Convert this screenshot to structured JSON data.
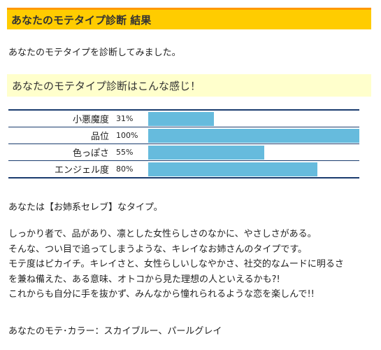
{
  "header": {
    "title": "あなたのモテタイプ診断 結果"
  },
  "intro_text": "あなたのモテタイプを診断してみました。",
  "section": {
    "heading": "あなたのモテタイプ診断はこんな感じ！"
  },
  "meters": [
    {
      "label": "小悪魔度",
      "percent_text": "31%",
      "value": 31
    },
    {
      "label": "品位",
      "percent_text": "100%",
      "value": 100
    },
    {
      "label": "色っぽさ",
      "percent_text": "55%",
      "value": 55
    },
    {
      "label": "エンジェル度",
      "percent_text": "80%",
      "value": 80
    }
  ],
  "meter_color": "#66bbdd",
  "result": {
    "type_line": "あなたは【お姉系セレブ】なタイプ。",
    "description_lines": [
      "しっかり者で、品があり、凛とした女性らしさのなかに、やさしさがある。",
      "そんな、つい目で追ってしまうような、キレイなお姉さんのタイプです。",
      "モテ度はピカイチ。キレイさと、女性らしいしなやかさ、社交的なムードに明るさ",
      "を兼ね備えた、ある意味、オトコから見た理想の人といえるかも?!",
      "これからも自分に手を抜かず、みんなから憧れられるような恋を楽しんで!!"
    ],
    "colors_line": "あなたのモテ･カラー：スカイブルー、パールグレイ"
  }
}
